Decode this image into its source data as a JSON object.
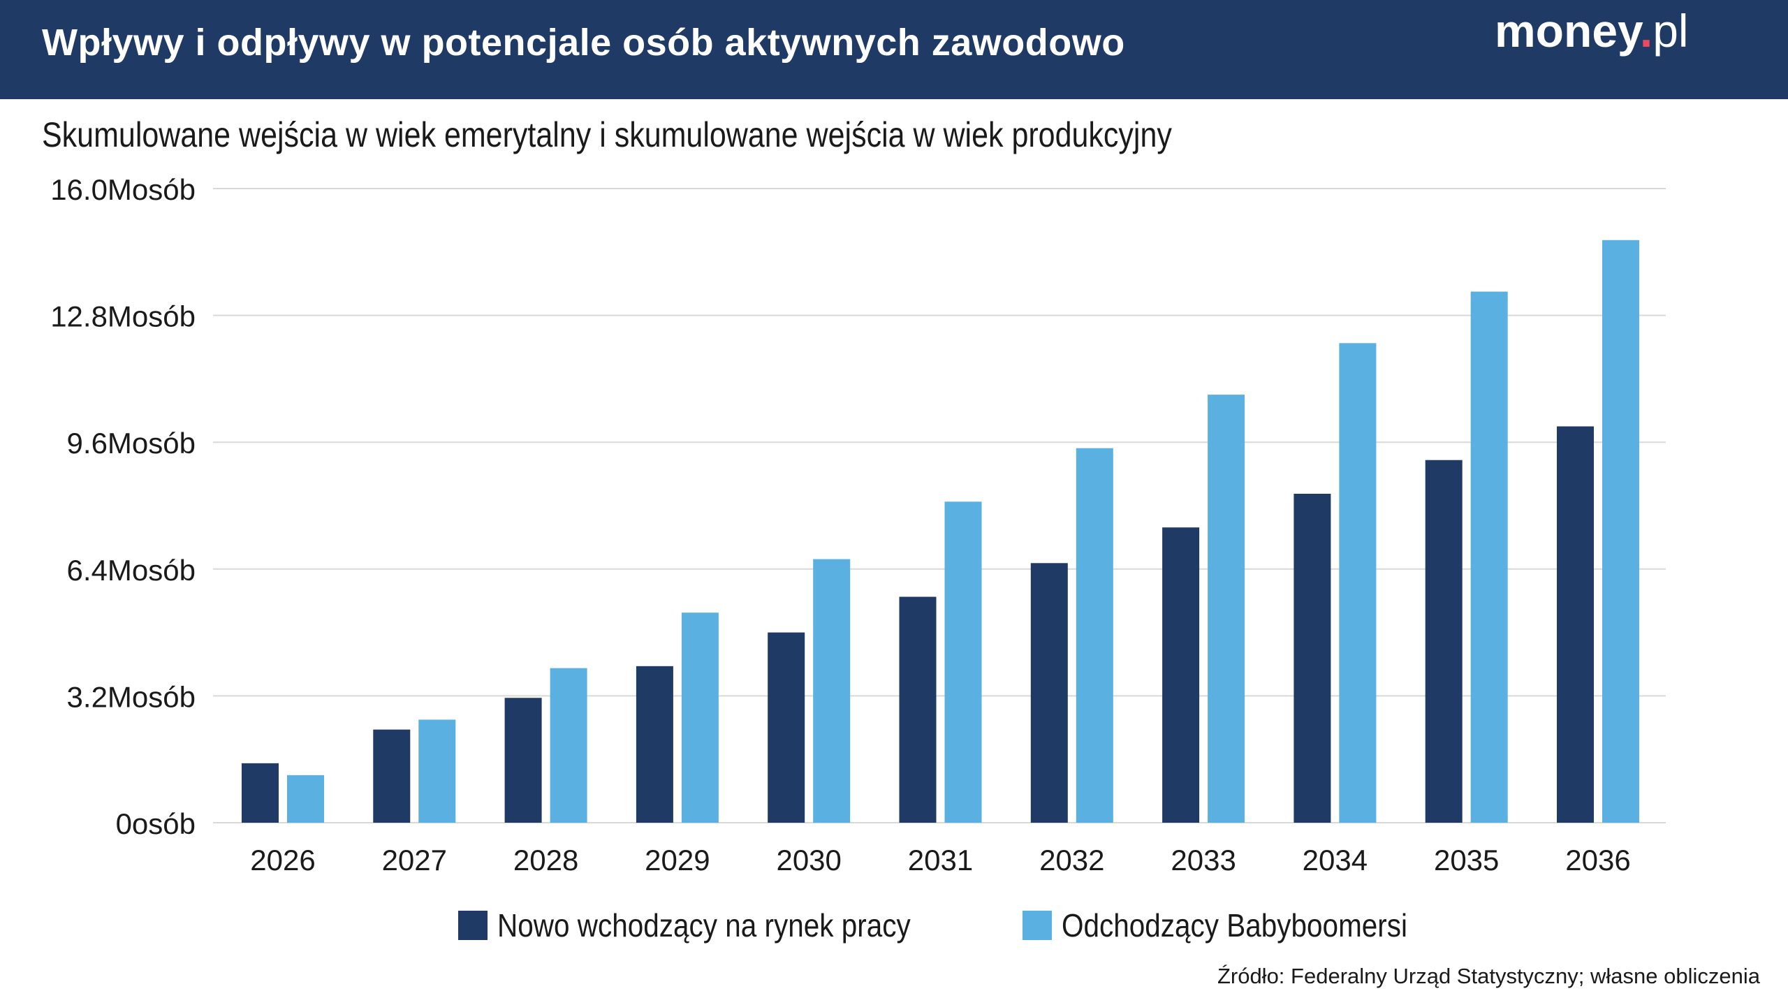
{
  "header": {
    "title": "Wpływy i odpływy w potencjale osób aktywnych zawodowo",
    "logo": {
      "main": "money",
      "dot": ".",
      "tld": "pl"
    }
  },
  "colors": {
    "header_bg": "#1f3a64",
    "series_dark": "#1f3a64",
    "series_light": "#5ab0e0",
    "gridline": "#d9d9d9",
    "logo_dot": "#e84a5f"
  },
  "chart_data": {
    "type": "bar",
    "title": "Skumulowane wejścia w wiek emerytalny i skumulowane wejścia w wiek produkcyjny",
    "categories": [
      "2026",
      "2027",
      "2028",
      "2029",
      "2030",
      "2031",
      "2032",
      "2033",
      "2034",
      "2035",
      "2036"
    ],
    "series": [
      {
        "name": "Nowo wchodzący na rynek pracy",
        "color": "#1f3a64",
        "values": [
          1.5,
          2.35,
          3.15,
          3.95,
          4.8,
          5.7,
          6.55,
          7.45,
          8.3,
          9.15,
          10.0
        ]
      },
      {
        "name": "Odchodzący Babyboomersi",
        "color": "#5ab0e0",
        "values": [
          1.2,
          2.6,
          3.9,
          5.3,
          6.65,
          8.1,
          9.45,
          10.8,
          12.1,
          13.4,
          14.7
        ]
      }
    ],
    "y_ticks": [
      "0osób",
      "3.2Mosób",
      "6.4Mosób",
      "9.6Mosób",
      "12.8Mosób",
      "16.0Mosób"
    ],
    "y_tick_values": [
      0,
      3.2,
      6.4,
      9.6,
      12.8,
      16.0
    ],
    "ylim": [
      0,
      16.0
    ],
    "grid": true,
    "legend_position": "bottom-center"
  },
  "legend": {
    "items": [
      {
        "label": "Nowo wchodzący na rynek pracy",
        "color": "#1f3a64"
      },
      {
        "label": "Odchodzący Babyboomersi",
        "color": "#5ab0e0"
      }
    ]
  },
  "source": "Źródło: Federalny Urząd Statystyczny; własne obliczenia"
}
